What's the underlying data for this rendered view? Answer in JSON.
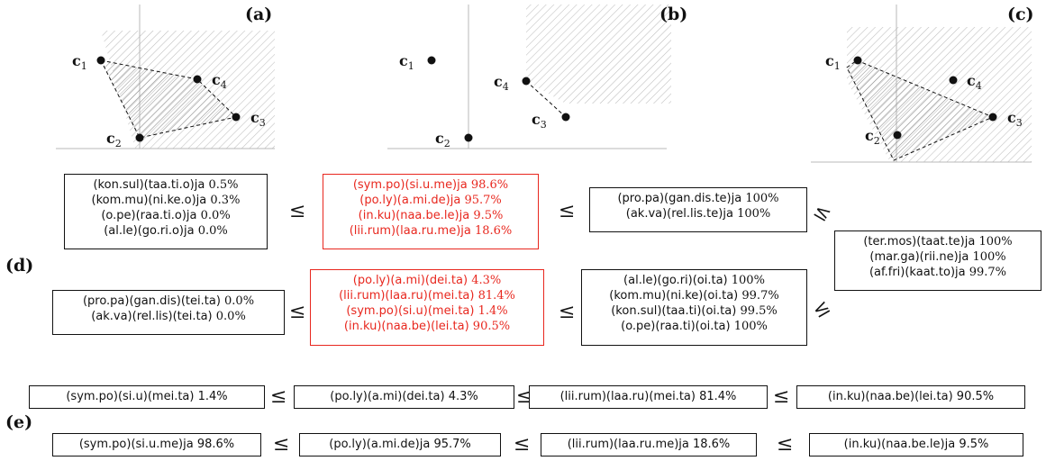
{
  "panels": {
    "a": "(a)",
    "b": "(b)",
    "c": "(c)",
    "d": "(d)",
    "e": "(e)"
  },
  "points": {
    "c1": {
      "main": "c",
      "sub": "1"
    },
    "c2": {
      "main": "c",
      "sub": "2"
    },
    "c3": {
      "main": "c",
      "sub": "3"
    },
    "c4": {
      "main": "c",
      "sub": "4"
    }
  },
  "leq": "≤",
  "d_top": [
    {
      "rows": [
        {
          "w": "(kon.sul)(taa.ti.o)ja",
          "p": "0.5%"
        },
        {
          "w": "(kom.mu)(ni.ke.o)ja",
          "p": "0.3%"
        },
        {
          "w": "(o.pe)(raa.ti.o)ja",
          "p": "0.0%"
        },
        {
          "w": "(al.le)(go.ri.o)ja",
          "p": "0.0%"
        }
      ]
    },
    {
      "rows": [
        {
          "w": "(sym.po)(si.u.me)ja",
          "p": "98.6%"
        },
        {
          "w": "(po.ly)(a.mi.de)ja",
          "p": "95.7%"
        },
        {
          "w": "(in.ku)(naa.be.le)ja",
          "p": "9.5%"
        },
        {
          "w": "(lii.rum)(laa.ru.me)ja",
          "p": "18.6%"
        }
      ]
    },
    {
      "rows": [
        {
          "w": "(pro.pa)(gan.dis.te)ja",
          "p": "100%"
        },
        {
          "w": "(ak.va)(rel.lis.te)ja",
          "p": "100%"
        }
      ]
    }
  ],
  "d_right": {
    "rows": [
      {
        "w": "(ter.mos)(taat.te)ja",
        "p": "100%"
      },
      {
        "w": "(mar.ga)(rii.ne)ja",
        "p": "100%"
      },
      {
        "w": "(af.fri)(kaat.to)ja",
        "p": "99.7%"
      }
    ]
  },
  "d_bottom": [
    {
      "rows": [
        {
          "w": "(pro.pa)(gan.dis)(tei.ta)",
          "p": "0.0%"
        },
        {
          "w": "(ak.va)(rel.lis)(tei.ta)",
          "p": "0.0%"
        }
      ]
    },
    {
      "rows": [
        {
          "w": "(po.ly)(a.mi)(dei.ta)",
          "p": "4.3%"
        },
        {
          "w": "(lii.rum)(laa.ru)(mei.ta)",
          "p": "81.4%"
        },
        {
          "w": "(sym.po)(si.u)(mei.ta)",
          "p": "1.4%"
        },
        {
          "w": "(in.ku)(naa.be)(lei.ta)",
          "p": "90.5%"
        }
      ]
    },
    {
      "rows": [
        {
          "w": "(al.le)(go.ri)(oi.ta)",
          "p": "100%"
        },
        {
          "w": "(kom.mu)(ni.ke)(oi.ta)",
          "p": "99.7%"
        },
        {
          "w": "(kon.sul)(taa.ti)(oi.ta)",
          "p": "99.5%"
        },
        {
          "w": "(o.pe)(raa.ti)(oi.ta)",
          "p": "100%"
        }
      ]
    }
  ],
  "e_row1": [
    {
      "w": "(sym.po)(si.u)(mei.ta)",
      "p": "1.4%"
    },
    {
      "w": "(po.ly)(a.mi)(dei.ta)",
      "p": "4.3%"
    },
    {
      "w": "(lii.rum)(laa.ru)(mei.ta)",
      "p": "81.4%"
    },
    {
      "w": "(in.ku)(naa.be)(lei.ta)",
      "p": "90.5%"
    }
  ],
  "e_row2": [
    {
      "w": "(sym.po)(si.u.me)ja",
      "p": "98.6%"
    },
    {
      "w": "(po.ly)(a.mi.de)ja",
      "p": "95.7%"
    },
    {
      "w": "(lii.rum)(laa.ru.me)ja",
      "p": "18.6%"
    },
    {
      "w": "(in.ku)(naa.be.le)ja",
      "p": "9.5%"
    }
  ],
  "colors": {
    "highlight": "#e8271e",
    "hatch": "#bdbdbd",
    "axis": "#b8b8b8",
    "ink": "#111111"
  }
}
